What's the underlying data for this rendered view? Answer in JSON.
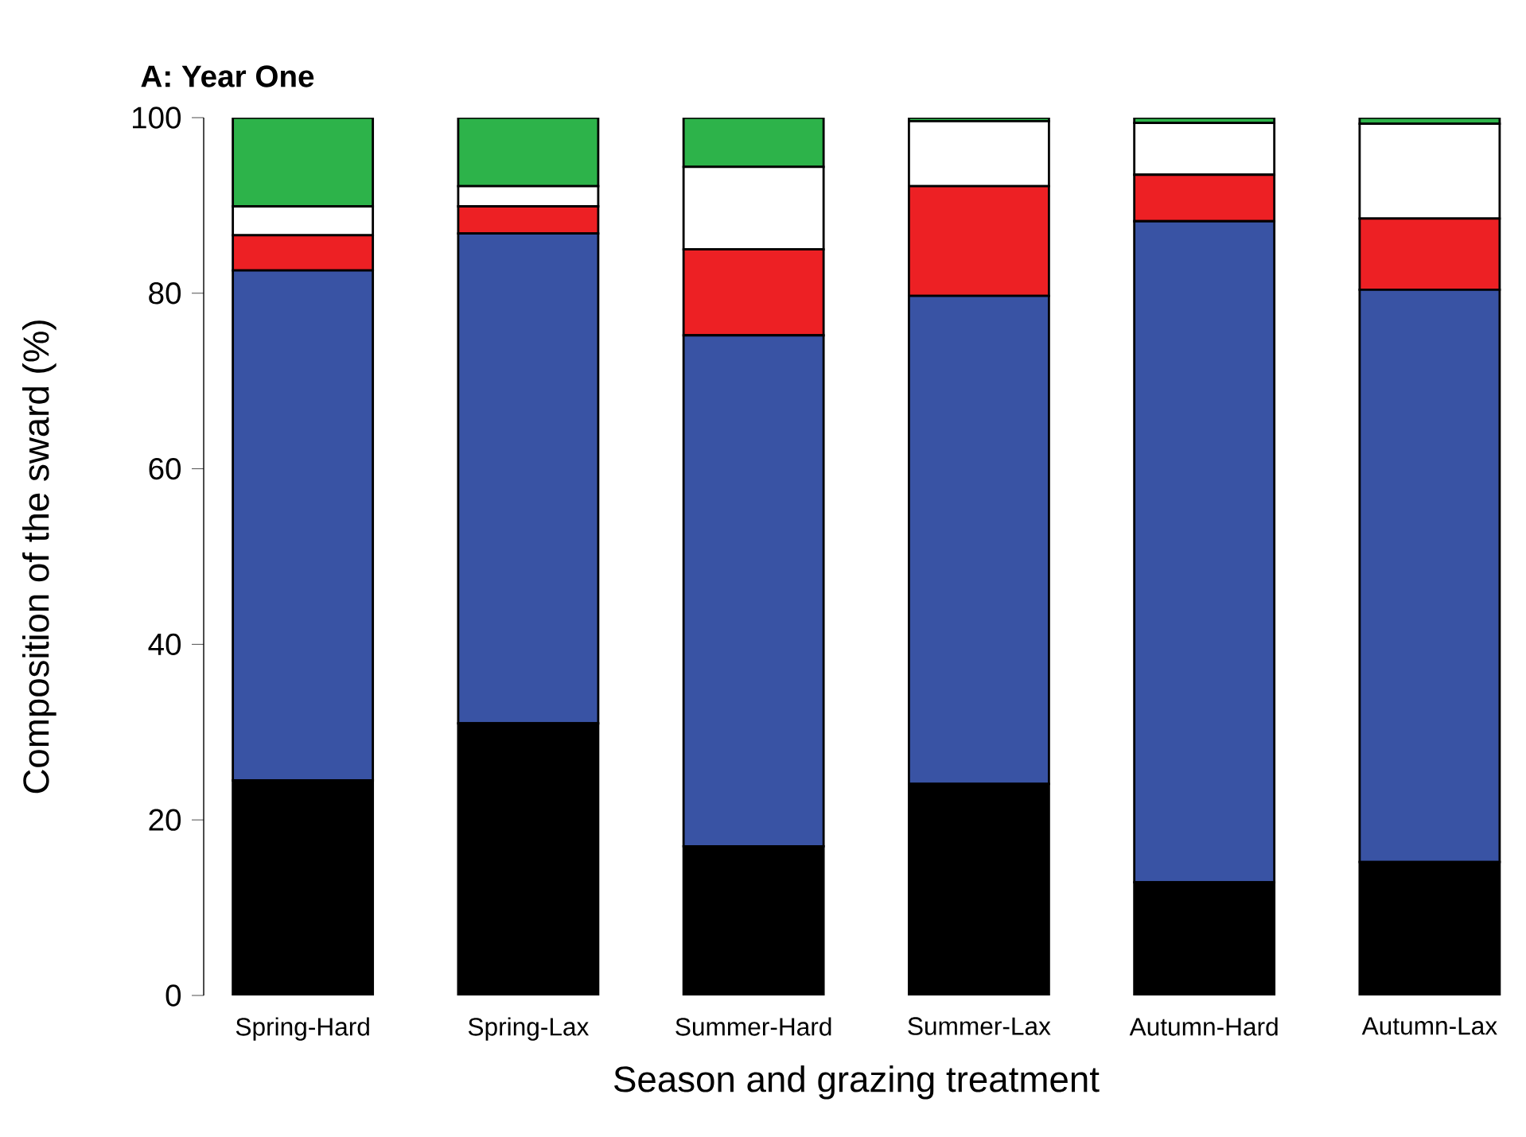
{
  "chart_data": {
    "type": "bar",
    "stacked": true,
    "title": "A: Year One",
    "xlabel": "Season and grazing treatment",
    "ylabel": "Composition of the sward (%)",
    "categories": [
      "Spring-Hard",
      "Spring-Lax",
      "Summer-Hard",
      "Summer-Lax",
      "Autumn-Hard",
      "Autumn-Lax"
    ],
    "series": [
      {
        "color": "#000000",
        "values": [
          24.5,
          31,
          17,
          24.1,
          12.9,
          15.2
        ]
      },
      {
        "color": "#3953a4",
        "values": [
          58.1,
          55.8,
          58.2,
          55.6,
          75.3,
          65.2
        ]
      },
      {
        "color": "#ed2024",
        "values": [
          4,
          3.1,
          9.8,
          12.5,
          5.3,
          8.1
        ]
      },
      {
        "color": "#ffffff",
        "values": [
          3.3,
          2.3,
          9.4,
          7.4,
          5.9,
          10.8
        ]
      },
      {
        "color": "#2db34a",
        "values": [
          10.1,
          7.8,
          5.6,
          0.4,
          0.6,
          0.7
        ]
      }
    ],
    "ylim": [
      0,
      100
    ],
    "yticks": [
      0,
      20,
      40,
      60,
      80,
      100
    ]
  }
}
